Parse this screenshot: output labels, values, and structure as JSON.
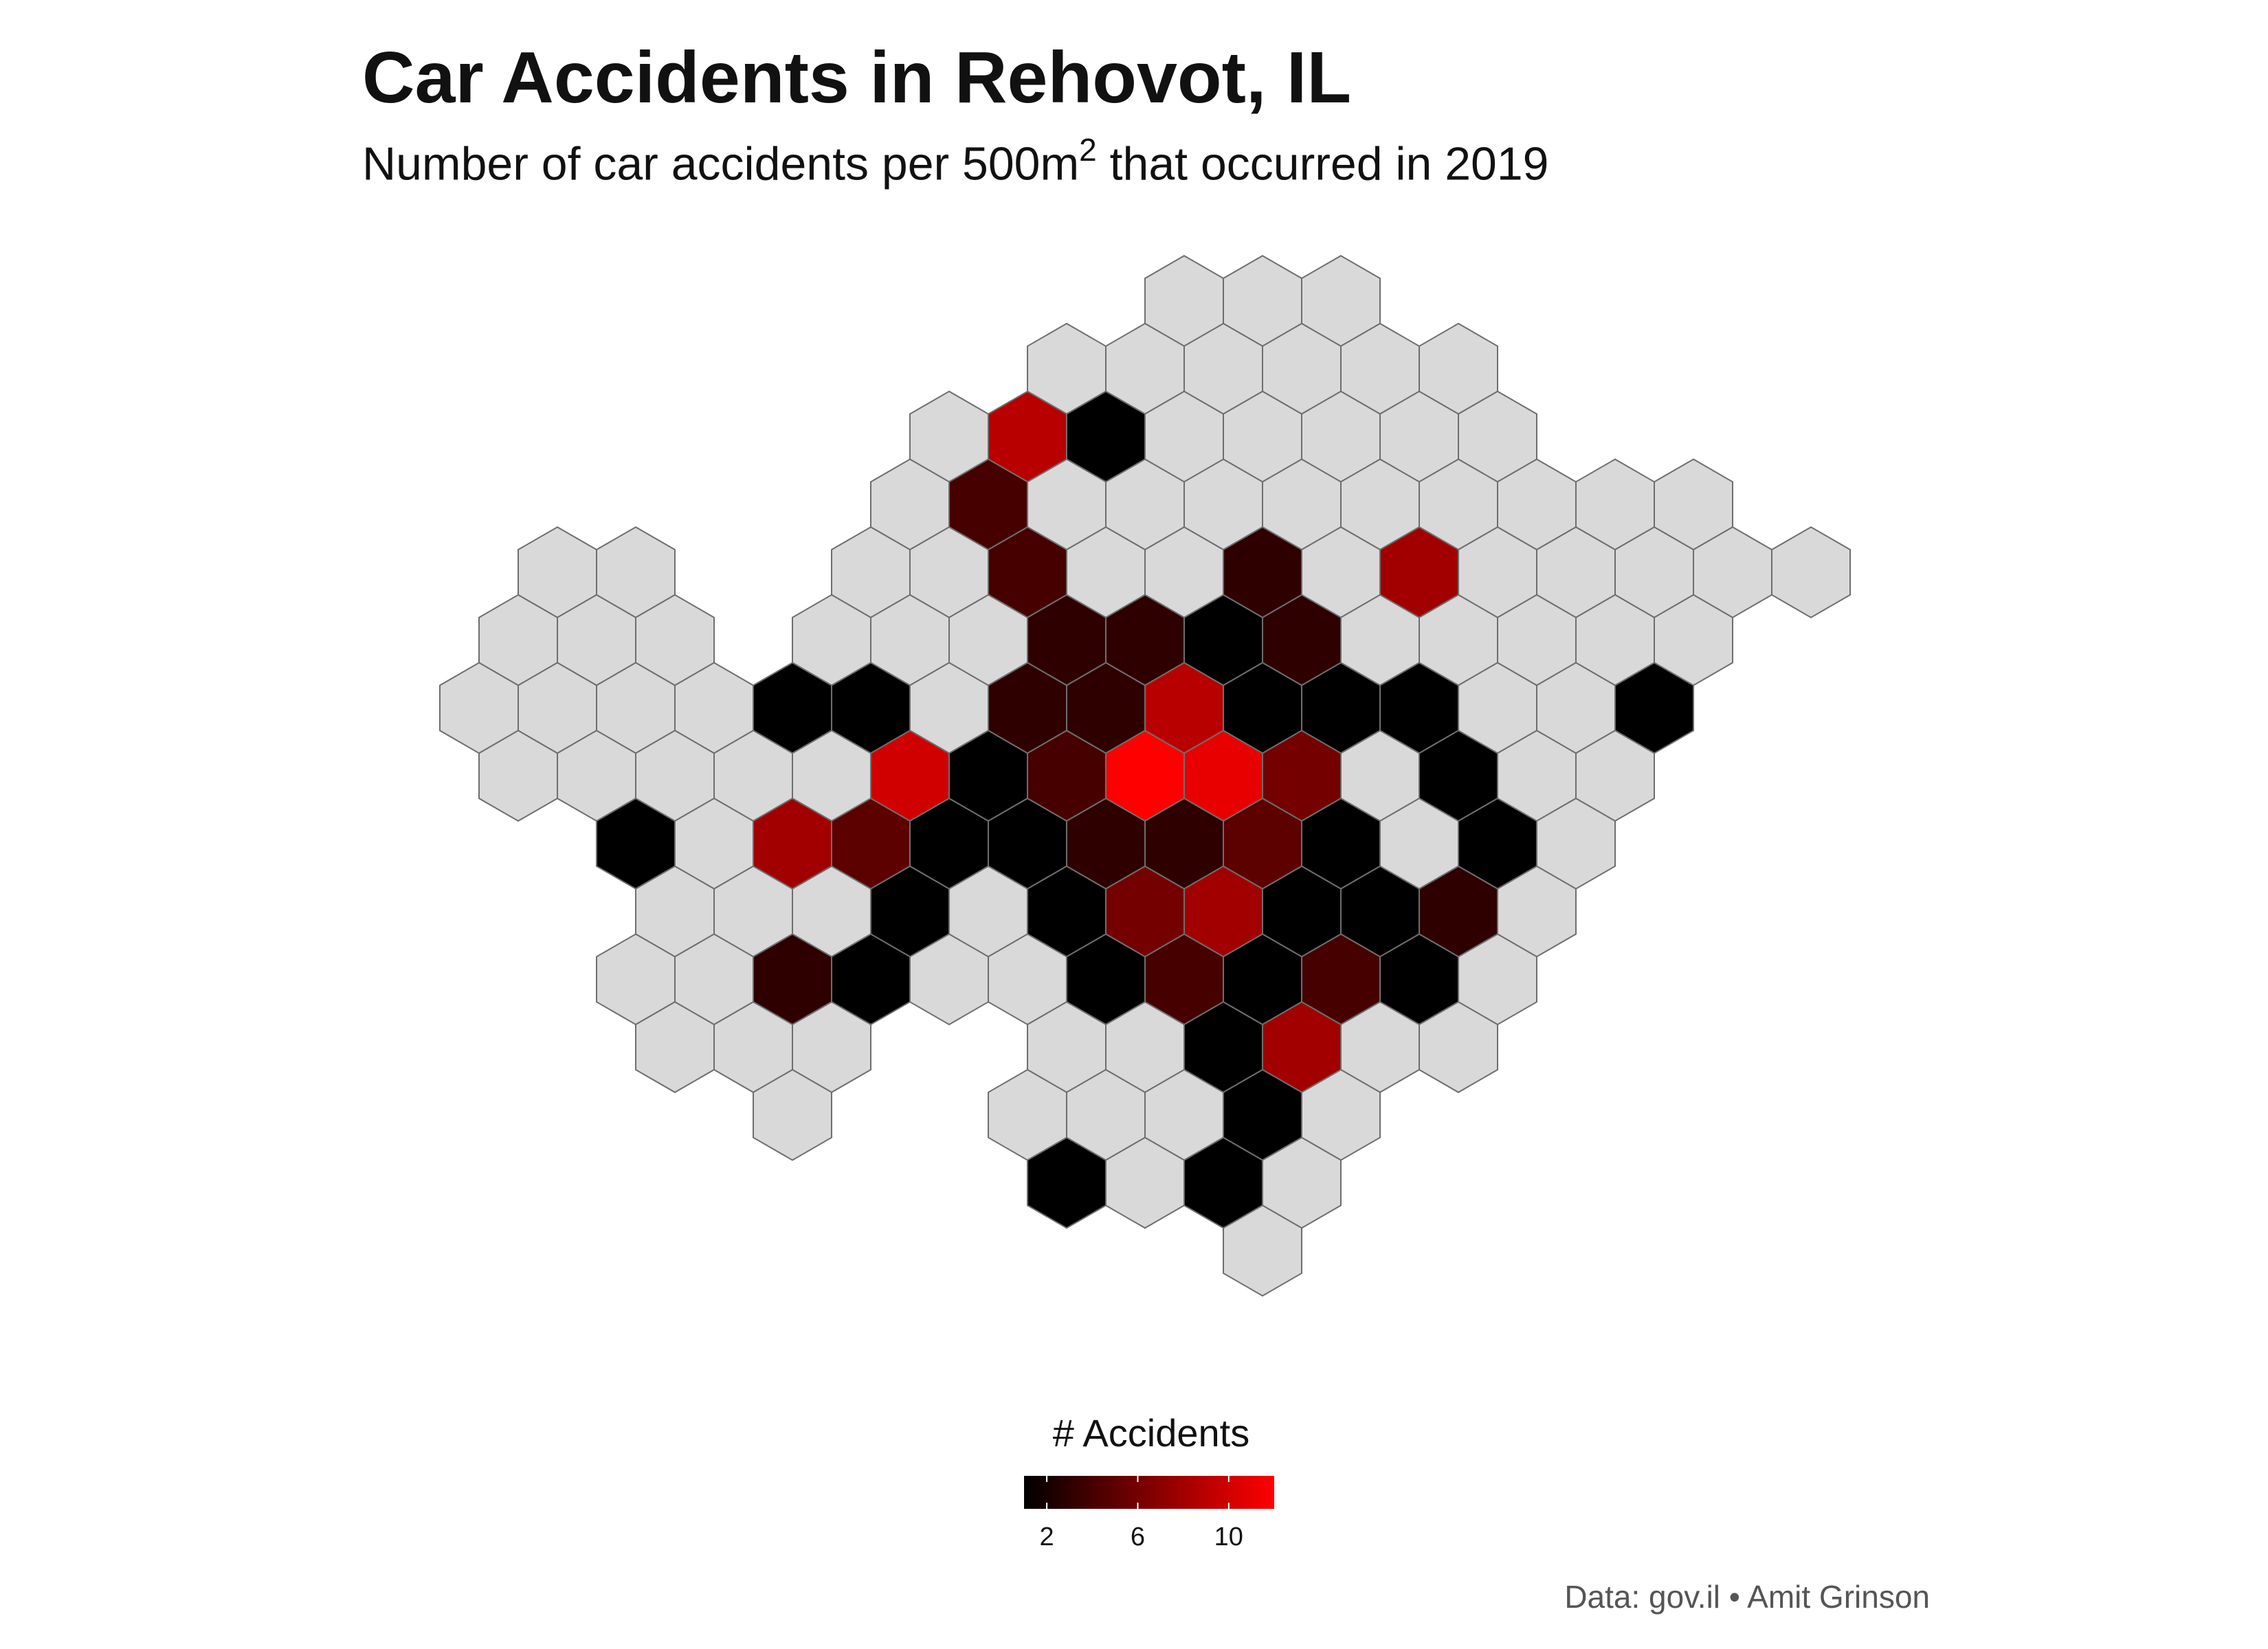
{
  "title": "Car Accidents in Rehovot, IL",
  "subtitle": {
    "before": "Number of car accidents per 500m",
    "superscript": "2",
    "after": " that occurred in 2019"
  },
  "legend": {
    "title": "# Accidents",
    "ticks": [
      "2",
      "6",
      "10"
    ],
    "tick_values": [
      2,
      6,
      10
    ],
    "range": [
      1,
      12
    ],
    "color_low": "#000000",
    "color_high": "#ff0000",
    "no_data_color": "#d9d9d9"
  },
  "caption": "Data: gov.il • Amit Grinson",
  "chart_data": {
    "type": "hexbin-map",
    "value_label": "# Accidents",
    "rows": [
      {
        "row": 0,
        "cells": [
          {
            "col": 9,
            "v": null
          },
          {
            "col": 10,
            "v": null
          },
          {
            "col": 11,
            "v": null
          }
        ]
      },
      {
        "row": 1,
        "cells": [
          {
            "col": 8,
            "v": null
          },
          {
            "col": 9,
            "v": null
          },
          {
            "col": 10,
            "v": null
          },
          {
            "col": 11,
            "v": null
          },
          {
            "col": 12,
            "v": null
          },
          {
            "col": 13,
            "v": null
          }
        ]
      },
      {
        "row": 2,
        "cells": [
          {
            "col": 6,
            "v": null
          },
          {
            "col": 7,
            "v": 9
          },
          {
            "col": 8,
            "v": 1
          },
          {
            "col": 9,
            "v": null
          },
          {
            "col": 10,
            "v": null
          },
          {
            "col": 11,
            "v": null
          },
          {
            "col": 12,
            "v": null
          },
          {
            "col": 13,
            "v": null
          }
        ]
      },
      {
        "row": 3,
        "cells": [
          {
            "col": 6,
            "v": null
          },
          {
            "col": 7,
            "v": 4
          },
          {
            "col": 8,
            "v": null
          },
          {
            "col": 9,
            "v": null
          },
          {
            "col": 10,
            "v": null
          },
          {
            "col": 11,
            "v": null
          },
          {
            "col": 12,
            "v": null
          },
          {
            "col": 13,
            "v": null
          },
          {
            "col": 14,
            "v": null
          },
          {
            "col": 15,
            "v": null
          },
          {
            "col": 16,
            "v": null
          }
        ]
      },
      {
        "row": 4,
        "cells": [
          {
            "col": 1,
            "v": null
          },
          {
            "col": 2,
            "v": null
          },
          {
            "col": 5,
            "v": null
          },
          {
            "col": 6,
            "v": null
          },
          {
            "col": 7,
            "v": 4
          },
          {
            "col": 8,
            "v": null
          },
          {
            "col": 9,
            "v": null
          },
          {
            "col": 10,
            "v": 3
          },
          {
            "col": 11,
            "v": null
          },
          {
            "col": 12,
            "v": 8
          },
          {
            "col": 13,
            "v": null
          },
          {
            "col": 14,
            "v": null
          },
          {
            "col": 15,
            "v": null
          },
          {
            "col": 16,
            "v": null
          },
          {
            "col": 17,
            "v": null
          }
        ]
      },
      {
        "row": 5,
        "cells": [
          {
            "col": 1,
            "v": null
          },
          {
            "col": 2,
            "v": null
          },
          {
            "col": 3,
            "v": null
          },
          {
            "col": 5,
            "v": null
          },
          {
            "col": 6,
            "v": null
          },
          {
            "col": 7,
            "v": null
          },
          {
            "col": 8,
            "v": 3
          },
          {
            "col": 9,
            "v": 3
          },
          {
            "col": 10,
            "v": 1
          },
          {
            "col": 11,
            "v": 3
          },
          {
            "col": 12,
            "v": null
          },
          {
            "col": 13,
            "v": null
          },
          {
            "col": 14,
            "v": null
          },
          {
            "col": 15,
            "v": null
          },
          {
            "col": 16,
            "v": null
          }
        ]
      },
      {
        "row": 6,
        "cells": [
          {
            "col": 0,
            "v": null
          },
          {
            "col": 1,
            "v": null
          },
          {
            "col": 2,
            "v": null
          },
          {
            "col": 3,
            "v": null
          },
          {
            "col": 4,
            "v": 1
          },
          {
            "col": 5,
            "v": 1
          },
          {
            "col": 6,
            "v": null
          },
          {
            "col": 7,
            "v": 3
          },
          {
            "col": 8,
            "v": 3
          },
          {
            "col": 9,
            "v": 9
          },
          {
            "col": 10,
            "v": 1
          },
          {
            "col": 11,
            "v": 1
          },
          {
            "col": 12,
            "v": 1
          },
          {
            "col": 13,
            "v": null
          },
          {
            "col": 14,
            "v": null
          },
          {
            "col": 15,
            "v": 1
          }
        ]
      },
      {
        "row": 7,
        "cells": [
          {
            "col": 1,
            "v": null
          },
          {
            "col": 2,
            "v": null
          },
          {
            "col": 3,
            "v": null
          },
          {
            "col": 4,
            "v": null
          },
          {
            "col": 5,
            "v": null
          },
          {
            "col": 6,
            "v": 10
          },
          {
            "col": 7,
            "v": 1
          },
          {
            "col": 8,
            "v": 4
          },
          {
            "col": 9,
            "v": 12
          },
          {
            "col": 10,
            "v": 11
          },
          {
            "col": 11,
            "v": 6
          },
          {
            "col": 12,
            "v": null
          },
          {
            "col": 13,
            "v": 1
          },
          {
            "col": 14,
            "v": null
          },
          {
            "col": 15,
            "v": null
          }
        ]
      },
      {
        "row": 8,
        "cells": [
          {
            "col": 2,
            "v": 1
          },
          {
            "col": 3,
            "v": null
          },
          {
            "col": 4,
            "v": 8
          },
          {
            "col": 5,
            "v": 5
          },
          {
            "col": 6,
            "v": 1
          },
          {
            "col": 7,
            "v": 1
          },
          {
            "col": 8,
            "v": 3
          },
          {
            "col": 9,
            "v": 3
          },
          {
            "col": 10,
            "v": 5
          },
          {
            "col": 11,
            "v": 1
          },
          {
            "col": 12,
            "v": null
          },
          {
            "col": 13,
            "v": 1
          },
          {
            "col": 14,
            "v": null
          }
        ]
      },
      {
        "row": 9,
        "cells": [
          {
            "col": 3,
            "v": null
          },
          {
            "col": 4,
            "v": null
          },
          {
            "col": 5,
            "v": null
          },
          {
            "col": 6,
            "v": 1
          },
          {
            "col": 7,
            "v": null
          },
          {
            "col": 8,
            "v": 1
          },
          {
            "col": 9,
            "v": 6
          },
          {
            "col": 10,
            "v": 8
          },
          {
            "col": 11,
            "v": 1
          },
          {
            "col": 12,
            "v": 1
          },
          {
            "col": 13,
            "v": 3
          },
          {
            "col": 14,
            "v": null
          }
        ]
      },
      {
        "row": 10,
        "cells": [
          {
            "col": 2,
            "v": null
          },
          {
            "col": 3,
            "v": null
          },
          {
            "col": 4,
            "v": 3
          },
          {
            "col": 5,
            "v": 1
          },
          {
            "col": 6,
            "v": null
          },
          {
            "col": 7,
            "v": null
          },
          {
            "col": 8,
            "v": 1
          },
          {
            "col": 9,
            "v": 4
          },
          {
            "col": 10,
            "v": 1
          },
          {
            "col": 11,
            "v": 4
          },
          {
            "col": 12,
            "v": 1
          },
          {
            "col": 13,
            "v": null
          }
        ]
      },
      {
        "row": 11,
        "cells": [
          {
            "col": 3,
            "v": null
          },
          {
            "col": 4,
            "v": null
          },
          {
            "col": 5,
            "v": null
          },
          {
            "col": 8,
            "v": null
          },
          {
            "col": 9,
            "v": null
          },
          {
            "col": 10,
            "v": 1
          },
          {
            "col": 11,
            "v": 8
          },
          {
            "col": 12,
            "v": null
          },
          {
            "col": 13,
            "v": null
          }
        ]
      },
      {
        "row": 12,
        "cells": [
          {
            "col": 4,
            "v": null
          },
          {
            "col": 7,
            "v": null
          },
          {
            "col": 8,
            "v": null
          },
          {
            "col": 9,
            "v": null
          },
          {
            "col": 10,
            "v": 1
          },
          {
            "col": 11,
            "v": null
          }
        ]
      },
      {
        "row": 13,
        "cells": [
          {
            "col": 8,
            "v": 1
          },
          {
            "col": 9,
            "v": null
          },
          {
            "col": 10,
            "v": 1
          },
          {
            "col": 11,
            "v": null
          }
        ]
      },
      {
        "row": 14,
        "cells": [
          {
            "col": 10,
            "v": null
          }
        ]
      }
    ]
  }
}
